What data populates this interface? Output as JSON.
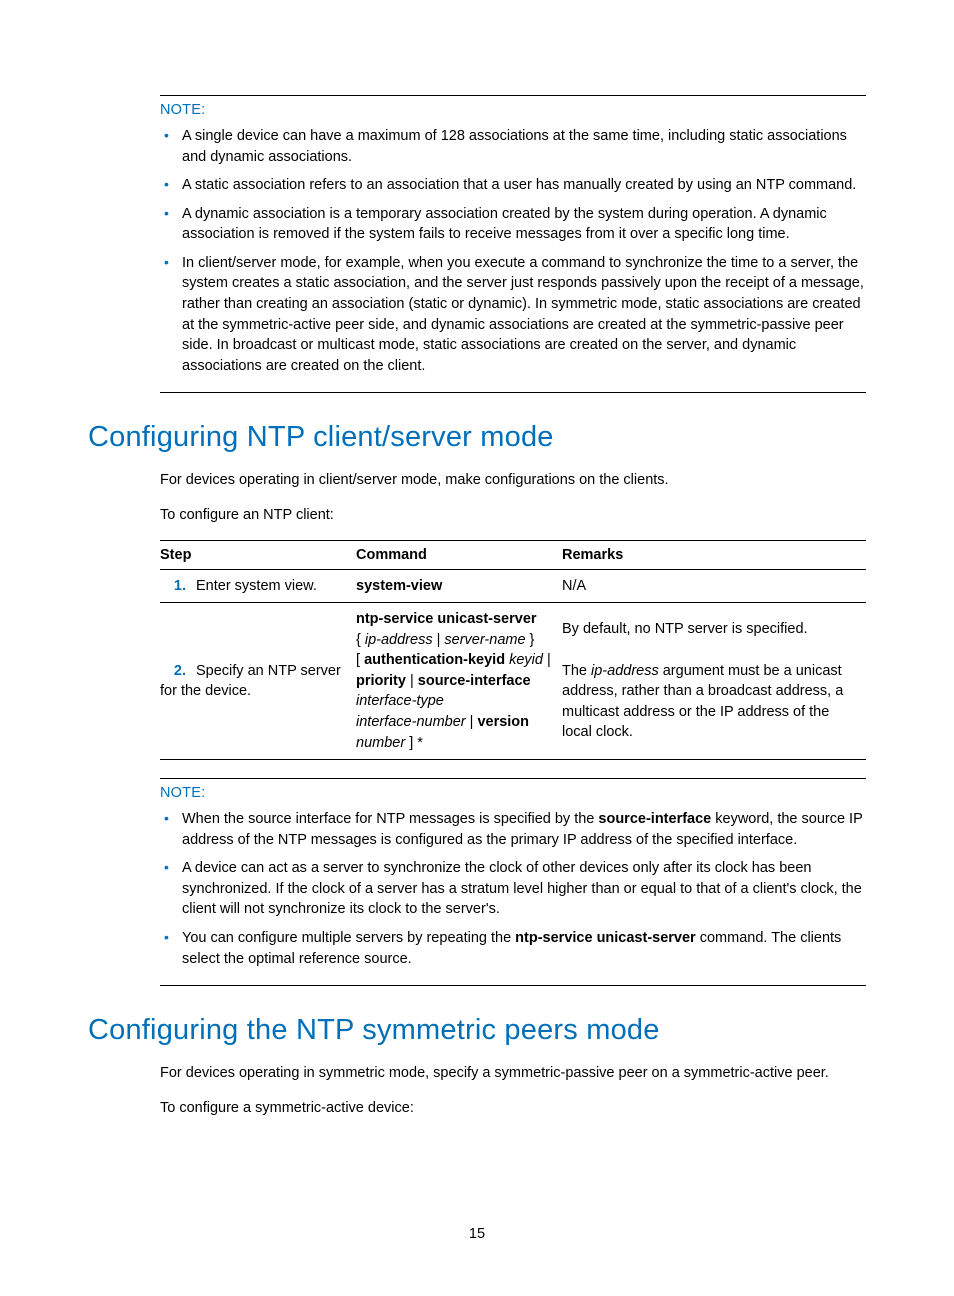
{
  "colors": {
    "accent": "#006fba",
    "text": "#000000",
    "background": "#ffffff",
    "rule": "#000000"
  },
  "typography": {
    "body_fontsize_pt": 11,
    "h2_fontsize_pt": 22,
    "font_family": "Futura"
  },
  "note1": {
    "label": "NOTE:",
    "items": [
      "A single device can have a maximum of 128 associations at the same time, including static associations and dynamic associations.",
      "A static association refers to an association that a user has manually created by using an NTP command.",
      "A dynamic association is a temporary association created by the system during operation. A dynamic association is removed if the system fails to receive messages from it over a specific long time.",
      "In client/server mode, for example, when you execute a command to synchronize the time to a server, the system creates a static association, and the server just responds passively upon the receipt of a message, rather than creating an association (static or dynamic). In symmetric mode, static associations are created at the symmetric-active peer side, and dynamic associations are created at the symmetric-passive peer side. In broadcast or multicast mode, static associations are created on the server, and dynamic associations are created on the client."
    ]
  },
  "section1": {
    "heading": "Configuring NTP client/server mode",
    "para1": "For devices operating in client/server mode, make configurations on the clients.",
    "para2": "To configure an NTP client:"
  },
  "table1": {
    "headers": {
      "step": "Step",
      "command": "Command",
      "remarks": "Remarks"
    },
    "rows": [
      {
        "num": "1.",
        "step": "Enter system view.",
        "command_html": "<span class=\"bold\">system-view</span>",
        "remarks_html": "N/A"
      },
      {
        "num": "2.",
        "step": "Specify an NTP server for the device.",
        "command_html": "<span class=\"bold\">ntp-service unicast-server</span><br>{ <span class=\"ital\">ip-address</span> | <span class=\"ital\">server-name</span> }<br>[ <span class=\"bold\">authentication-keyid</span> <span class=\"ital\">keyid</span> |<br><span class=\"bold\">priority</span> | <span class=\"bold\">source-interface</span><br><span class=\"ital\">interface-type<br>interface-number</span> | <span class=\"bold\">version</span><br><span class=\"ital\">number</span> ] *",
        "remarks_html": "By default, no NTP server is specified.<br><br>The <span class=\"ital\">ip-address</span> argument must be a unicast address, rather than a broadcast address, a multicast address or the IP address of the local clock."
      }
    ]
  },
  "note2": {
    "label": "NOTE:",
    "items_html": [
      "When the source interface for NTP messages is specified by the <span class=\"bold\">source-interface</span> keyword, the source IP address of the NTP messages is configured as the primary IP address of the specified interface.",
      "A device can act as a server to synchronize the clock of other devices only after its clock has been synchronized. If the clock of a server has a stratum level higher than or equal to that of a client's clock, the client will not synchronize its clock to the server's.",
      "You can configure multiple servers by repeating the <span class=\"bold\">ntp-service unicast-server</span> command. The clients select the optimal reference source."
    ]
  },
  "section2": {
    "heading": "Configuring the NTP symmetric peers mode",
    "para1": "For devices operating in symmetric mode, specify a symmetric-passive peer on a symmetric-active peer.",
    "para2": "To configure a symmetric-active device:"
  },
  "page_number": "15"
}
